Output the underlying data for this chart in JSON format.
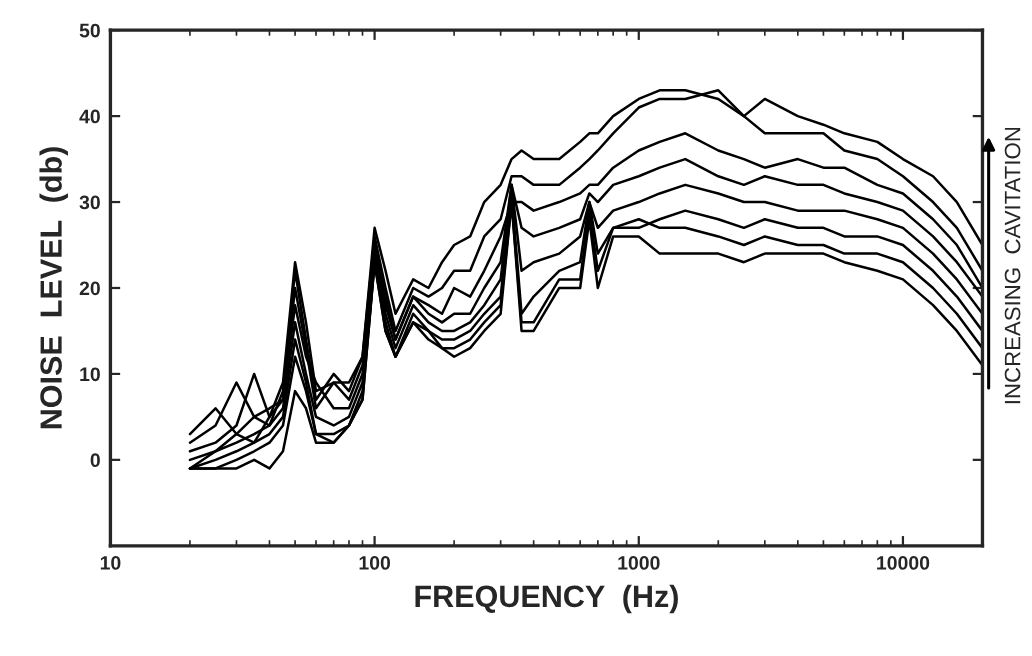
{
  "chart_data": {
    "type": "line",
    "xlabel": "FREQUENCY  (Hz)",
    "ylabel": "NOISE  LEVEL  (db)",
    "annotations": [
      "INCREASING  CAVITATION"
    ],
    "log": "x",
    "xlim": [
      10,
      20000
    ],
    "xticks": [
      10,
      100,
      1000,
      10000
    ],
    "ylim": [
      -10,
      50
    ],
    "yticks": [
      0,
      10,
      20,
      30,
      40,
      50
    ],
    "grid": false,
    "legend": false,
    "marker": "none",
    "line_style": "solid",
    "x": [
      20,
      25,
      30,
      35,
      40,
      45,
      50,
      55,
      60,
      70,
      80,
      90,
      100,
      110,
      120,
      140,
      160,
      180,
      200,
      230,
      260,
      300,
      330,
      360,
      400,
      500,
      600,
      650,
      700,
      800,
      1000,
      1200,
      1500,
      2000,
      2500,
      3000,
      4000,
      5000,
      6000,
      8000,
      10000,
      13000,
      16000,
      20000
    ],
    "series": [
      {
        "color": "#000000",
        "values": [
          3,
          6,
          3,
          2,
          5,
          9,
          23,
          16,
          8,
          9,
          9,
          12,
          27,
          22,
          17,
          21,
          20,
          23,
          25,
          26,
          30,
          32,
          35,
          36,
          35,
          35,
          37,
          38,
          38,
          40,
          42,
          43,
          43,
          42,
          40,
          42,
          40,
          39,
          38,
          37,
          35,
          33,
          30,
          25
        ]
      },
      {
        "color": "#000000",
        "values": [
          2,
          4,
          9,
          5,
          4,
          8,
          22,
          14,
          7,
          10,
          8,
          12,
          26,
          20,
          15,
          20,
          19,
          20,
          22,
          22,
          26,
          28,
          33,
          33,
          32,
          32,
          34,
          35,
          36,
          38,
          41,
          42,
          42,
          43,
          40,
          38,
          38,
          38,
          36,
          35,
          33,
          30,
          27,
          22
        ]
      },
      {
        "color": "#000000",
        "values": [
          1,
          2,
          4,
          10,
          5,
          7,
          20,
          13,
          6,
          9,
          7,
          11,
          25,
          19,
          14,
          19,
          18,
          17,
          20,
          19,
          22,
          26,
          30,
          30,
          29,
          30,
          31,
          32,
          32,
          34,
          36,
          37,
          38,
          36,
          35,
          34,
          35,
          34,
          34,
          32,
          31,
          28,
          25,
          20
        ]
      },
      {
        "color": "#000000",
        "values": [
          0,
          1,
          3,
          5,
          6,
          7,
          18,
          12,
          9,
          6,
          6,
          10,
          25,
          18,
          14,
          19,
          17,
          16,
          17,
          17,
          20,
          23,
          32,
          27,
          26,
          27,
          28,
          31,
          30,
          32,
          33,
          34,
          35,
          33,
          32,
          33,
          32,
          32,
          31,
          30,
          29,
          26,
          23,
          19
        ]
      },
      {
        "color": "#000000",
        "values": [
          -1,
          1,
          2,
          3,
          4,
          6,
          16,
          10,
          5,
          4,
          5,
          9,
          24,
          17,
          13,
          18,
          16,
          15,
          15,
          16,
          18,
          21,
          32,
          22,
          23,
          24,
          26,
          30,
          27,
          29,
          30,
          31,
          32,
          31,
          30,
          30,
          29,
          29,
          29,
          28,
          27,
          24,
          21,
          17
        ]
      },
      {
        "color": "#000000",
        "values": [
          -1,
          0,
          1,
          2,
          3,
          5,
          14,
          9,
          3,
          3,
          4,
          8,
          23,
          16,
          12,
          17,
          15,
          14,
          14,
          15,
          17,
          19,
          31,
          17,
          19,
          22,
          23,
          30,
          24,
          27,
          27,
          28,
          29,
          28,
          27,
          28,
          27,
          27,
          26,
          26,
          25,
          22,
          19,
          15
        ]
      },
      {
        "color": "#000000",
        "values": [
          -1,
          -1,
          0,
          1,
          2,
          4,
          12,
          8,
          3,
          2,
          4,
          7,
          23,
          15,
          12,
          16,
          15,
          13,
          13,
          14,
          16,
          18,
          30,
          16,
          16,
          21,
          21,
          29,
          22,
          27,
          28,
          27,
          27,
          26,
          25,
          26,
          25,
          25,
          24,
          24,
          23,
          20,
          17,
          13
        ]
      },
      {
        "color": "#000000",
        "values": [
          -1,
          -1,
          -1,
          0,
          -1,
          1,
          8,
          6,
          2,
          2,
          4,
          7,
          23,
          15,
          12,
          16,
          14,
          13,
          12,
          13,
          15,
          17,
          30,
          15,
          15,
          20,
          20,
          28,
          20,
          26,
          26,
          24,
          24,
          24,
          23,
          24,
          24,
          24,
          23,
          22,
          21,
          18,
          15,
          11
        ]
      }
    ]
  }
}
